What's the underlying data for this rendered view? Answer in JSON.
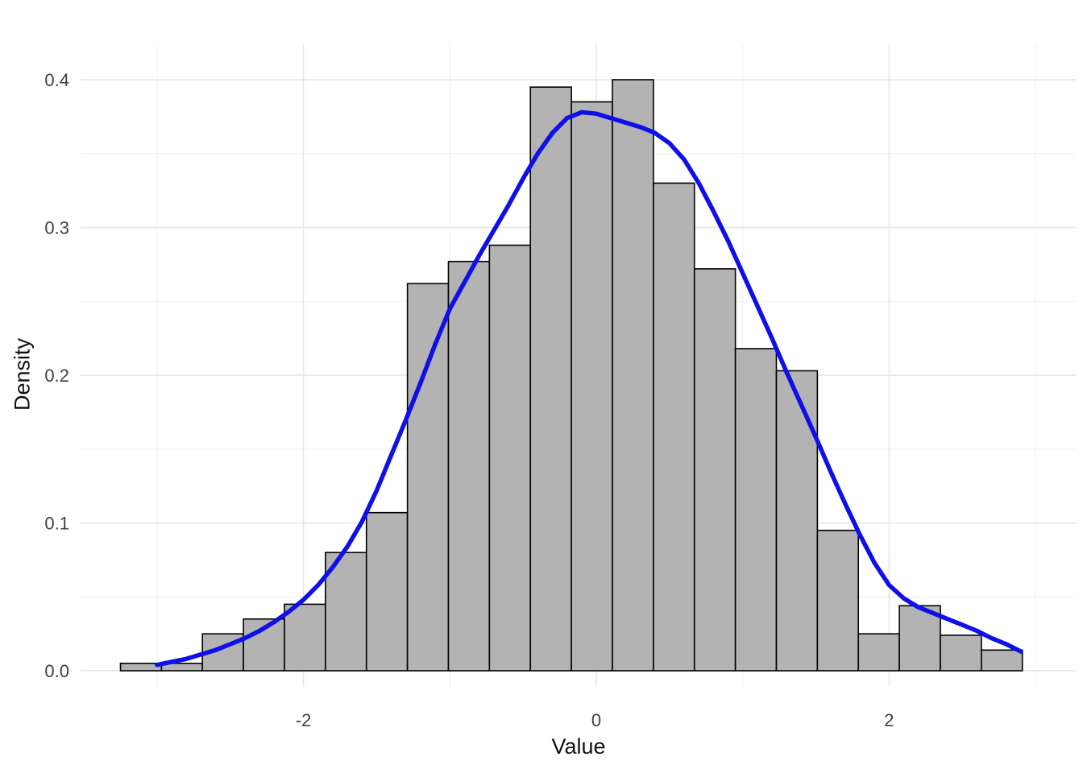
{
  "chart_data": {
    "type": "histogram",
    "title": "",
    "xlabel": "Value",
    "ylabel": "Density",
    "grid": true,
    "legend": "none",
    "x_axis": {
      "major_ticks": [
        -2,
        0,
        2
      ],
      "major_labels": [
        "-2",
        "0",
        "2"
      ],
      "minor_ticks": [
        -3,
        -1,
        1,
        3
      ],
      "range": [
        -3.5,
        3.28
      ]
    },
    "y_axis": {
      "major_ticks": [
        0,
        0.1,
        0.2,
        0.3,
        0.4
      ],
      "major_labels": [
        "0.0",
        "0.1",
        "0.2",
        "0.3",
        "0.4"
      ],
      "minor_ticks": [
        0.05,
        0.15,
        0.25,
        0.35
      ],
      "range": [
        0,
        0.42
      ]
    },
    "bins": {
      "start": -3.25,
      "width": 0.28,
      "densities": [
        0.005,
        0.005,
        0.025,
        0.035,
        0.045,
        0.08,
        0.107,
        0.262,
        0.277,
        0.288,
        0.395,
        0.385,
        0.4,
        0.33,
        0.272,
        0.218,
        0.203,
        0.095,
        0.025,
        0.044,
        0.024,
        0.014
      ]
    },
    "density_curve": [
      [
        -3.0,
        0.004
      ],
      [
        -2.9,
        0.006
      ],
      [
        -2.8,
        0.008
      ],
      [
        -2.7,
        0.011
      ],
      [
        -2.6,
        0.014
      ],
      [
        -2.5,
        0.018
      ],
      [
        -2.4,
        0.022
      ],
      [
        -2.3,
        0.027
      ],
      [
        -2.2,
        0.033
      ],
      [
        -2.1,
        0.04
      ],
      [
        -2.0,
        0.048
      ],
      [
        -1.9,
        0.058
      ],
      [
        -1.8,
        0.07
      ],
      [
        -1.7,
        0.084
      ],
      [
        -1.6,
        0.101
      ],
      [
        -1.5,
        0.122
      ],
      [
        -1.4,
        0.146
      ],
      [
        -1.3,
        0.17
      ],
      [
        -1.2,
        0.195
      ],
      [
        -1.1,
        0.221
      ],
      [
        -1.0,
        0.245
      ],
      [
        -0.9,
        0.263
      ],
      [
        -0.8,
        0.281
      ],
      [
        -0.7,
        0.298
      ],
      [
        -0.6,
        0.315
      ],
      [
        -0.5,
        0.333
      ],
      [
        -0.4,
        0.35
      ],
      [
        -0.3,
        0.364
      ],
      [
        -0.2,
        0.374
      ],
      [
        -0.1,
        0.378
      ],
      [
        0.0,
        0.377
      ],
      [
        0.1,
        0.374
      ],
      [
        0.2,
        0.371
      ],
      [
        0.3,
        0.368
      ],
      [
        0.4,
        0.364
      ],
      [
        0.5,
        0.357
      ],
      [
        0.6,
        0.346
      ],
      [
        0.7,
        0.33
      ],
      [
        0.8,
        0.311
      ],
      [
        0.9,
        0.291
      ],
      [
        1.0,
        0.269
      ],
      [
        1.1,
        0.247
      ],
      [
        1.2,
        0.225
      ],
      [
        1.3,
        0.202
      ],
      [
        1.4,
        0.18
      ],
      [
        1.5,
        0.158
      ],
      [
        1.6,
        0.135
      ],
      [
        1.7,
        0.113
      ],
      [
        1.8,
        0.092
      ],
      [
        1.9,
        0.073
      ],
      [
        2.0,
        0.058
      ],
      [
        2.1,
        0.049
      ],
      [
        2.2,
        0.043
      ],
      [
        2.3,
        0.039
      ],
      [
        2.4,
        0.035
      ],
      [
        2.5,
        0.031
      ],
      [
        2.6,
        0.027
      ],
      [
        2.7,
        0.022
      ],
      [
        2.8,
        0.018
      ],
      [
        2.9,
        0.013
      ]
    ],
    "colors": {
      "background": "#ffffff",
      "bar_fill": "#b3b3b3",
      "bar_stroke": "#000000",
      "curve": "#0f0fe8",
      "grid_major": "#e4e4e4",
      "grid_minor": "#f0f0f0",
      "tick_text": "#404040",
      "title_text": "#111111"
    }
  }
}
